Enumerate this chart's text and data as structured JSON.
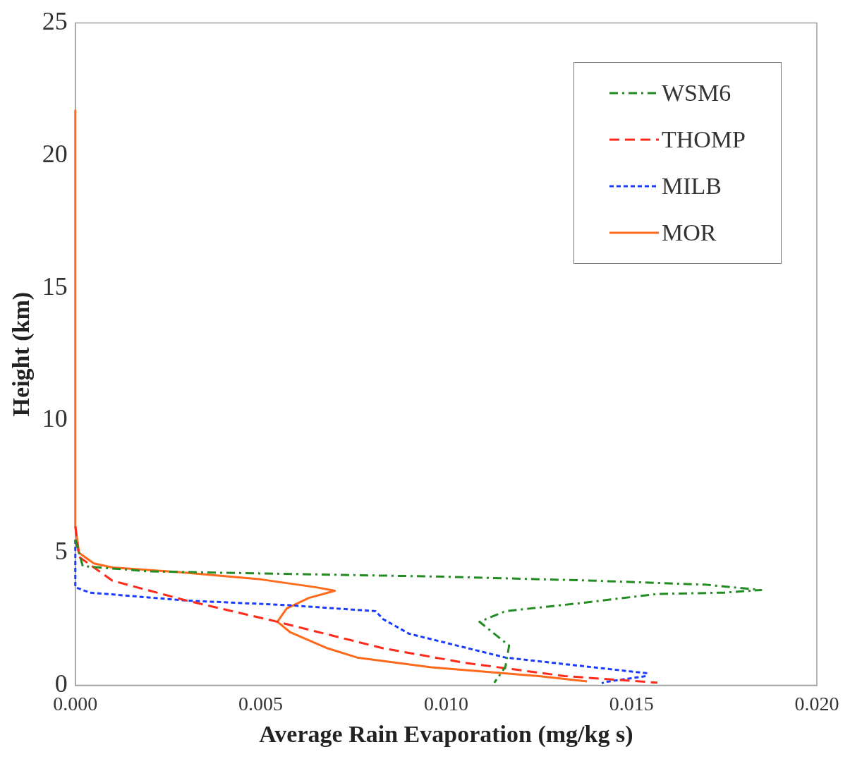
{
  "chart_data": {
    "type": "line",
    "xlabel": "Average Rain Evaporation (mg/kg s)",
    "ylabel": "Height (km)",
    "xlim": [
      0,
      0.02
    ],
    "xticks": [
      {
        "value": 0,
        "label": "0.000"
      },
      {
        "value": 0.005,
        "label": "0.005"
      },
      {
        "value": 0.01,
        "label": "0.010"
      },
      {
        "value": 0.015,
        "label": "0.015"
      },
      {
        "value": 0.02,
        "label": "0.020"
      }
    ],
    "ylim": [
      0,
      25
    ],
    "yticks": [
      0,
      5,
      10,
      15,
      20,
      25
    ],
    "grid": false,
    "legend": "top right",
    "marker": "none",
    "series": [
      {
        "name": "WSM6",
        "color": "#228b22",
        "line_style": "dashdot",
        "x": [
          0,
          0.0002,
          0.002,
          0.006,
          0.01,
          0.014,
          0.017,
          0.0185,
          0.0175,
          0.0157,
          0.0136,
          0.0116,
          0.0109,
          0.0117,
          0.0116,
          0.0113
        ],
        "values": [
          5.5,
          4.5,
          4.3,
          4.2,
          4.1,
          3.95,
          3.8,
          3.6,
          3.5,
          3.45,
          3.1,
          2.8,
          2.4,
          1.5,
          0.7,
          0.1
        ]
      },
      {
        "name": "THOMP",
        "color": "#ff2a1a",
        "line_style": "dashed",
        "x": [
          0,
          0.0001,
          0.001,
          0.003,
          0.0053,
          0.0083,
          0.0105,
          0.0132,
          0.0157
        ],
        "values": [
          6,
          4.85,
          3.95,
          3.2,
          2.45,
          1.4,
          0.85,
          0.35,
          0.1
        ]
      },
      {
        "name": "MILB",
        "color": "#1a3cff",
        "line_style": "dotted",
        "x": [
          0,
          0,
          0.0004,
          0.003,
          0.0057,
          0.0081,
          0.0083,
          0.009,
          0.0116,
          0.0154,
          0.0154,
          0.0143,
          0.0142
        ],
        "values": [
          5.5,
          3.7,
          3.5,
          3.2,
          3.03,
          2.8,
          2.5,
          1.95,
          1.05,
          0.46,
          0.35,
          0.13,
          0.08
        ]
      },
      {
        "name": "MOR",
        "color": "#ff6a1a",
        "line_style": "solid",
        "x": [
          0,
          0,
          0.0001,
          0.0005,
          0.001,
          0.003,
          0.005,
          0.0065,
          0.007,
          0.0063,
          0.0057,
          0.00545,
          0.0058,
          0.0068,
          0.0076,
          0.0096,
          0.0125,
          0.0138
        ],
        "values": [
          21.7,
          6,
          5,
          4.6,
          4.45,
          4.25,
          4.0,
          3.7,
          3.57,
          3.3,
          2.9,
          2.4,
          2.0,
          1.4,
          1.05,
          0.68,
          0.35,
          0.15
        ]
      }
    ]
  }
}
